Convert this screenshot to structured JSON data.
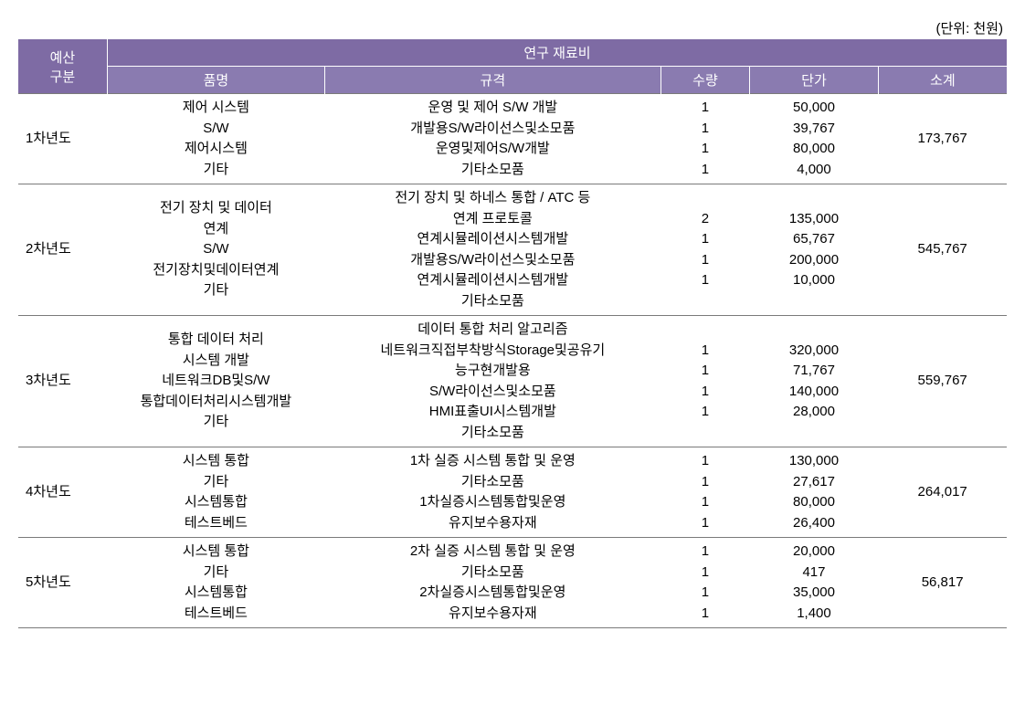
{
  "unit_label": "(단위: 천원)",
  "header": {
    "budget": "예산\n구분",
    "materials": "연구 재료비",
    "item": "품명",
    "spec": "규격",
    "qty": "수량",
    "price": "단가",
    "subtotal": "소계"
  },
  "colors": {
    "header_bg": "#7e6ba4",
    "header_bg2": "#8a7bb0",
    "border": "#7a7a7a"
  },
  "rows": [
    {
      "year": "1차년도",
      "items": "제어 시스템\nS/W\n제어시스템\n기타",
      "specs": "운영 및 제어 S/W 개발\n개발용S/W라이선스및소모품\n운영및제어S/W개발\n기타소모품",
      "qtys": "1\n1\n1\n1",
      "prices": "50,000\n39,767\n80,000\n4,000",
      "subtotal": "173,767"
    },
    {
      "year": "2차년도",
      "items": "전기 장치 및 데이터\n연계\nS/W\n전기장치및데이터연계\n기타",
      "specs": "전기 장치 및 하네스 통합 / ATC 등\n연계 프로토콜\n연계시뮬레이션시스템개발\n개발용S/W라이선스및소모품\n연계시뮬레이션시스템개발\n기타소모품",
      "qtys": "2\n1\n1\n1",
      "prices": "135,000\n65,767\n200,000\n10,000",
      "subtotal": "545,767"
    },
    {
      "year": "3차년도",
      "items": "통합 데이터 처리\n시스템 개발\n네트워크DB및S/W\n통합데이터처리시스템개발\n기타",
      "specs": "데이터 통합 처리 알고리즘\n네트워크직접부착방식Storage및공유기\n능구현개발용\nS/W라이선스및소모품\nHMI표출UI시스템개발\n기타소모품",
      "qtys": "1\n1\n1\n1",
      "prices": "320,000\n71,767\n140,000\n28,000",
      "subtotal": "559,767"
    },
    {
      "year": "4차년도",
      "items": "시스템 통합\n기타\n시스템통합\n테스트베드",
      "specs": "1차 실증 시스템 통합 및 운영\n기타소모품\n1차실증시스템통합및운영\n유지보수용자재",
      "qtys": "1\n1\n1\n1",
      "prices": "130,000\n27,617\n80,000\n26,400",
      "subtotal": "264,017"
    },
    {
      "year": "5차년도",
      "items": "시스템 통합\n기타\n시스템통합\n테스트베드",
      "specs": "2차 실증 시스템 통합 및 운영\n기타소모품\n2차실증시스템통합및운영\n유지보수용자재",
      "qtys": "1\n1\n1\n1",
      "prices": "20,000\n417\n35,000\n1,400",
      "subtotal": "56,817"
    }
  ]
}
